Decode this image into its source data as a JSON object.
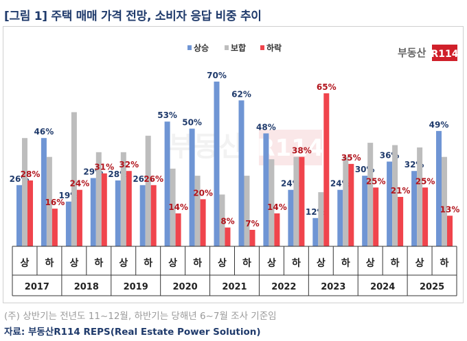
{
  "title": "[그림 1] 주택 매매 가격 전망, 소비자 응답 비중 추이",
  "footnote": "(주) 상반기는 전년도 11~12월, 하반기는 당해년 6~7월 조사 기준임",
  "source": "자료: 부동산R114 REPS(Real Estate Power Solution)",
  "watermark": {
    "brand_text": "부동산",
    "brand_box_text": "R114"
  },
  "chart_data": {
    "type": "bar",
    "legend": {
      "position": "top-center",
      "entries": [
        "상승",
        "보합",
        "하락"
      ]
    },
    "colors": {
      "상승": "#6f95d4",
      "보합": "#bdbdbd",
      "하락": "#f0444c"
    },
    "label_colors": {
      "상승": "#1f3a6b",
      "하락": "#b1141c"
    },
    "years": [
      "2017",
      "2018",
      "2019",
      "2020",
      "2021",
      "2022",
      "2023",
      "2024",
      "2025"
    ],
    "halves": [
      "상",
      "하"
    ],
    "categories": [
      "2017 상",
      "2017 하",
      "2018 상",
      "2018 하",
      "2019 상",
      "2019 하",
      "2020 상",
      "2020 하",
      "2021 상",
      "2021 하",
      "2022 상",
      "2022 하",
      "2023 상",
      "2023 하",
      "2024 상",
      "2024 하",
      "2025 상",
      "2025 하"
    ],
    "series": [
      {
        "name": "상승",
        "values": [
          26,
          46,
          19,
          29,
          28,
          26,
          53,
          50,
          70,
          62,
          48,
          24,
          12,
          24,
          30,
          36,
          32,
          49
        ],
        "labeled": true
      },
      {
        "name": "보합",
        "values": [
          46,
          38,
          57,
          40,
          40,
          47,
          33,
          30,
          22,
          30,
          37,
          38,
          23,
          38,
          44,
          43,
          42,
          38
        ],
        "labeled": false
      },
      {
        "name": "하락",
        "values": [
          28,
          16,
          24,
          31,
          32,
          26,
          14,
          20,
          8,
          7,
          14,
          38,
          65,
          35,
          25,
          21,
          25,
          13
        ],
        "labeled": true
      }
    ],
    "value_suffix": "%",
    "ylim": [
      0,
      80
    ]
  }
}
